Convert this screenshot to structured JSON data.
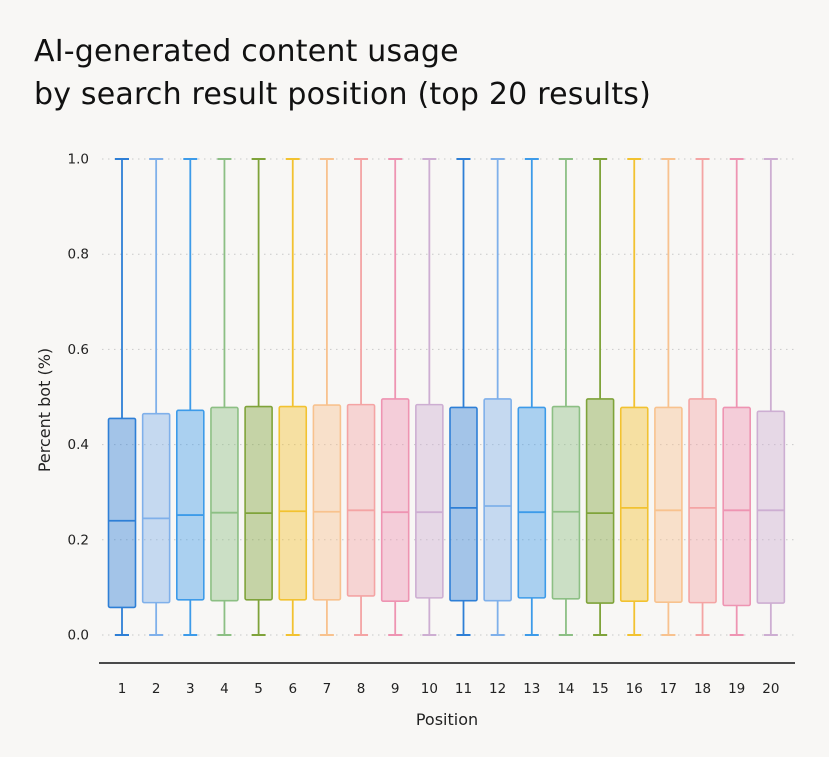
{
  "title_lines": [
    "AI-generated content usage",
    "by search result position (top 20 results)"
  ],
  "chart_data": {
    "type": "box",
    "xlabel": "Position",
    "ylabel": "Percent bot (%)",
    "ylim": [
      0,
      1
    ],
    "yticks": [
      "0.0",
      "0.2",
      "0.4",
      "0.6",
      "0.8",
      "1.0"
    ],
    "grid": "horizontal dotted",
    "categories": [
      "1",
      "2",
      "3",
      "4",
      "5",
      "6",
      "7",
      "8",
      "9",
      "10",
      "11",
      "12",
      "13",
      "14",
      "15",
      "16",
      "17",
      "18",
      "19",
      "20"
    ],
    "boxes": [
      {
        "position": "1",
        "min": 0,
        "q1": 0.058,
        "median": 0.24,
        "q3": 0.455,
        "max": 1,
        "color": "#2e7fd6"
      },
      {
        "position": "2",
        "min": 0,
        "q1": 0.068,
        "median": 0.245,
        "q3": 0.465,
        "max": 1,
        "color": "#7fb0ea"
      },
      {
        "position": "3",
        "min": 0,
        "q1": 0.074,
        "median": 0.252,
        "q3": 0.472,
        "max": 1,
        "color": "#3d9be9"
      },
      {
        "position": "4",
        "min": 0,
        "q1": 0.072,
        "median": 0.257,
        "q3": 0.478,
        "max": 1,
        "color": "#8cbf84"
      },
      {
        "position": "5",
        "min": 0,
        "q1": 0.074,
        "median": 0.256,
        "q3": 0.48,
        "max": 1,
        "color": "#7fa33a"
      },
      {
        "position": "6",
        "min": 0,
        "q1": 0.074,
        "median": 0.26,
        "q3": 0.48,
        "max": 1,
        "color": "#f2c230"
      },
      {
        "position": "7",
        "min": 0,
        "q1": 0.074,
        "median": 0.259,
        "q3": 0.483,
        "max": 1,
        "color": "#f8c28e"
      },
      {
        "position": "8",
        "min": 0,
        "q1": 0.082,
        "median": 0.262,
        "q3": 0.484,
        "max": 1,
        "color": "#f4a4a4"
      },
      {
        "position": "9",
        "min": 0,
        "q1": 0.071,
        "median": 0.258,
        "q3": 0.496,
        "max": 1,
        "color": "#ee94b2"
      },
      {
        "position": "10",
        "min": 0,
        "q1": 0.078,
        "median": 0.258,
        "q3": 0.484,
        "max": 1,
        "color": "#cdaed2"
      },
      {
        "position": "11",
        "min": 0,
        "q1": 0.072,
        "median": 0.267,
        "q3": 0.478,
        "max": 1,
        "color": "#2e7fd6"
      },
      {
        "position": "12",
        "min": 0,
        "q1": 0.072,
        "median": 0.271,
        "q3": 0.496,
        "max": 1,
        "color": "#7fb0ea"
      },
      {
        "position": "13",
        "min": 0,
        "q1": 0.078,
        "median": 0.258,
        "q3": 0.478,
        "max": 1,
        "color": "#3d9be9"
      },
      {
        "position": "14",
        "min": 0,
        "q1": 0.076,
        "median": 0.259,
        "q3": 0.48,
        "max": 1,
        "color": "#8cbf84"
      },
      {
        "position": "15",
        "min": 0,
        "q1": 0.067,
        "median": 0.256,
        "q3": 0.496,
        "max": 1,
        "color": "#7fa33a"
      },
      {
        "position": "16",
        "min": 0,
        "q1": 0.071,
        "median": 0.267,
        "q3": 0.478,
        "max": 1,
        "color": "#f2c230"
      },
      {
        "position": "17",
        "min": 0,
        "q1": 0.069,
        "median": 0.262,
        "q3": 0.478,
        "max": 1,
        "color": "#f8c28e"
      },
      {
        "position": "18",
        "min": 0,
        "q1": 0.068,
        "median": 0.267,
        "q3": 0.496,
        "max": 1,
        "color": "#f4a4a4"
      },
      {
        "position": "19",
        "min": 0,
        "q1": 0.062,
        "median": 0.262,
        "q3": 0.478,
        "max": 1,
        "color": "#ee94b2"
      },
      {
        "position": "20",
        "min": 0,
        "q1": 0.067,
        "median": 0.262,
        "q3": 0.47,
        "max": 1,
        "color": "#cdaed2"
      }
    ]
  }
}
